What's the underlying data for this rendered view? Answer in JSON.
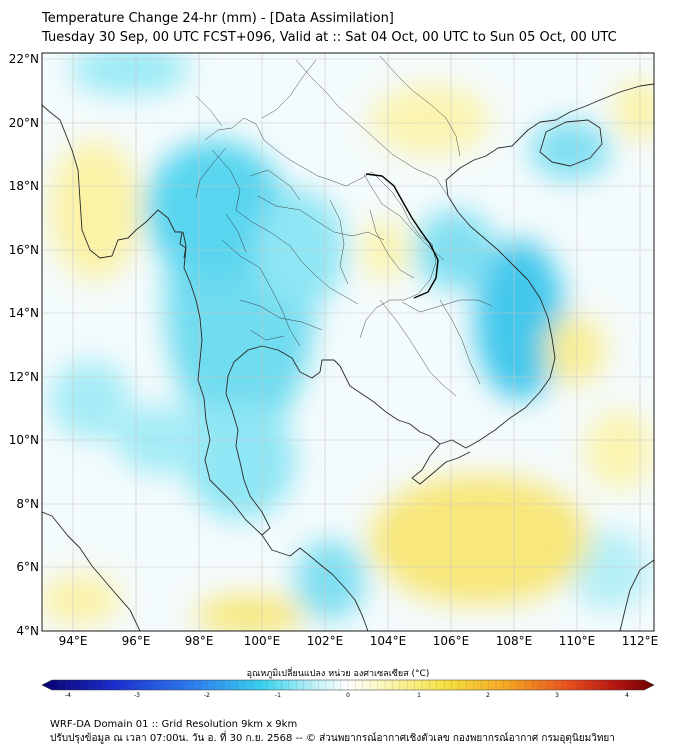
{
  "header": {
    "title_line1": "Temperature Change 24-hr (mm) - [Data Assimilation]",
    "title_line2": "Tuesday 30 Sep, 00 UTC FCST+096, Valid at :: Sat 04 Oct, 00 UTC to Sun 05 Oct, 00 UTC"
  },
  "map": {
    "lat_labels": [
      "22°N",
      "20°N",
      "18°N",
      "16°N",
      "14°N",
      "12°N",
      "10°N",
      "8°N",
      "6°N",
      "4°N"
    ],
    "lon_labels": [
      "94°E",
      "96°E",
      "98°E",
      "100°E",
      "102°E",
      "104°E",
      "106°E",
      "108°E",
      "110°E",
      "112°E"
    ],
    "extent": {
      "lon_min": 93,
      "lon_max": 112.5,
      "lat_min": 4,
      "lat_max": 22.2
    }
  },
  "colorbar": {
    "title": "อุณหภูมิเปลี่ยนแปลง หน่วย องศาเซลเซียส (°C)",
    "range": [
      -4,
      4
    ],
    "tick_labels": [
      "-4",
      "-3",
      "-2",
      "-1",
      "0",
      "1",
      "2",
      "3",
      "4"
    ],
    "colors": [
      "#08006e",
      "#1a2fd0",
      "#2f7ff0",
      "#39d2ee",
      "#c5f3f7",
      "#ffffff",
      "#fbf7b8",
      "#f7e140",
      "#f5a623",
      "#e8501e",
      "#b3120f",
      "#6e0000"
    ]
  },
  "footer": {
    "line1": "WRF-DA Domain 01 :: Grid Resolution 9km x 9km",
    "line2": "ปรับปรุงข้อมูล ณ เวลา 07:00น. วัน อ. ที่ 30 ก.ย. 2568 -- © ส่วนพยากรณ์อากาศเชิงตัวเลข กองพยากรณ์อากาศ กรมอุตุนิยมวิทยา"
  }
}
